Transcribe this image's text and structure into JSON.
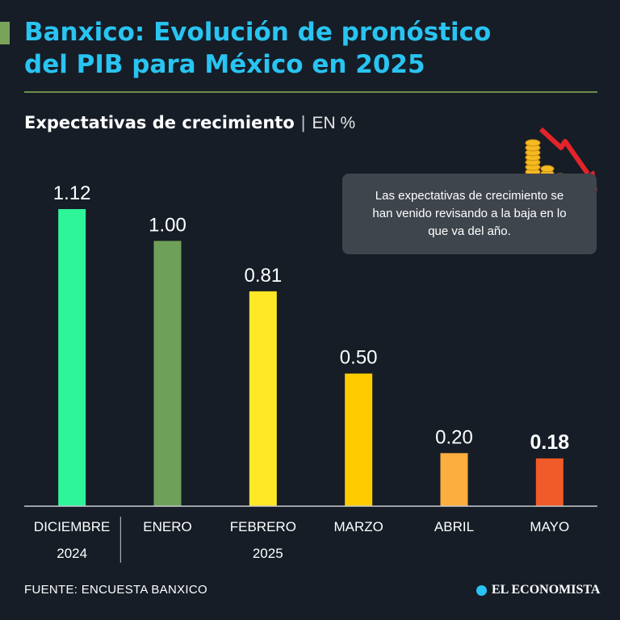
{
  "header": {
    "title_line1": "Banxico: Evolución de pronóstico",
    "title_line2": "del PIB para México en 2025",
    "subtitle": "Expectativas de crecimiento",
    "separator": "|",
    "unit": "EN %"
  },
  "callout": {
    "text": "Las expectativas de crecimiento se han venido revisando a la baja en lo que va del año."
  },
  "footer": {
    "source": "FUENTE: ENCUESTA BANXICO",
    "brand": "EL ECONOMISTA"
  },
  "colors": {
    "title": "#29c4f1",
    "background": "#161d27"
  },
  "chart_data": {
    "type": "bar",
    "title": "Expectativas de crecimiento",
    "ylabel": "EN %",
    "xlabel": "",
    "categories": [
      "DICIEMBRE",
      "ENERO",
      "FEBRERO",
      "MARZO",
      "ABRIL",
      "MAYO"
    ],
    "values": [
      1.12,
      1.0,
      0.81,
      0.5,
      0.2,
      0.18
    ],
    "value_labels": [
      "1.12",
      "1.00",
      "0.81",
      "0.50",
      "0.20",
      "0.18"
    ],
    "highlight_index": 5,
    "bar_colors": [
      "#2ef59a",
      "#6fa05a",
      "#ffe825",
      "#ffcc00",
      "#fcae3e",
      "#f15a29"
    ],
    "year_groups": [
      {
        "label": "2024",
        "start": 0,
        "end": 0
      },
      {
        "label": "2025",
        "start": 1,
        "end": 5
      }
    ],
    "ylim": [
      0,
      1.2
    ],
    "grid": false
  }
}
